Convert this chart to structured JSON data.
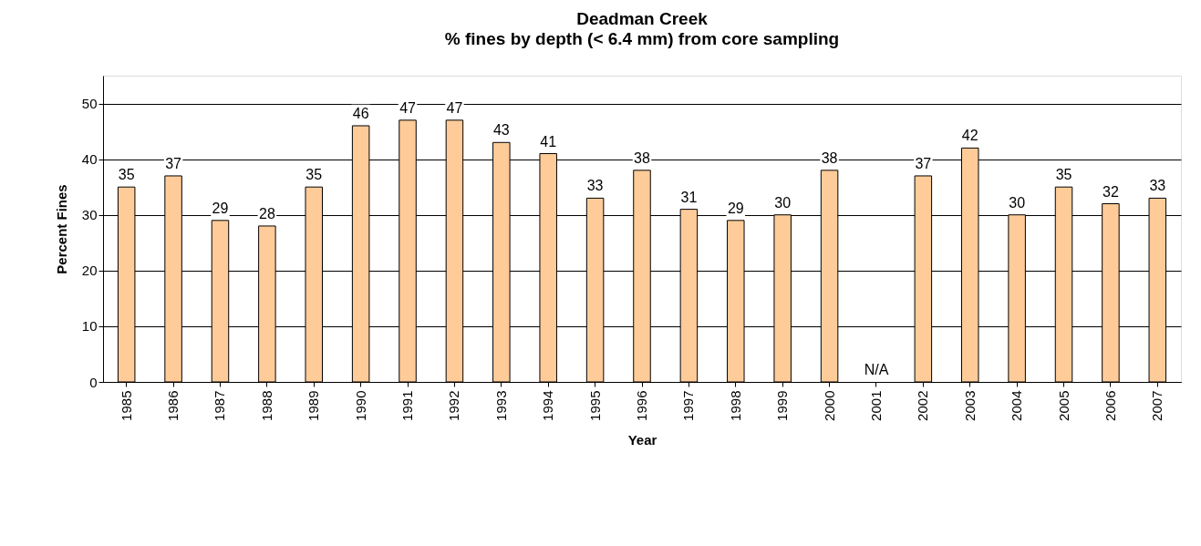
{
  "chart_data": {
    "type": "bar",
    "title": "Deadman Creek",
    "subtitle": "% fines by depth (< 6.4 mm) from core sampling",
    "xlabel": "Year",
    "ylabel": "Percent Fines",
    "categories": [
      "1985",
      "1986",
      "1987",
      "1988",
      "1989",
      "1990",
      "1991",
      "1992",
      "1993",
      "1994",
      "1995",
      "1996",
      "1997",
      "1998",
      "1999",
      "2000",
      "2001",
      "2002",
      "2003",
      "2004",
      "2005",
      "2006",
      "2007"
    ],
    "values": [
      35,
      37,
      29,
      28,
      35,
      46,
      47,
      47,
      43,
      41,
      33,
      38,
      31,
      29,
      30,
      38,
      null,
      37,
      42,
      30,
      35,
      32,
      33
    ],
    "value_labels": [
      "35",
      "37",
      "29",
      "28",
      "35",
      "46",
      "47",
      "47",
      "43",
      "41",
      "33",
      "38",
      "31",
      "29",
      "30",
      "38",
      "N/A",
      "37",
      "42",
      "30",
      "35",
      "32",
      "33"
    ],
    "color": "#ffcc99",
    "ylim": [
      0,
      55
    ],
    "yticks": [
      0,
      10,
      20,
      30,
      40,
      50
    ],
    "grid": "y"
  }
}
